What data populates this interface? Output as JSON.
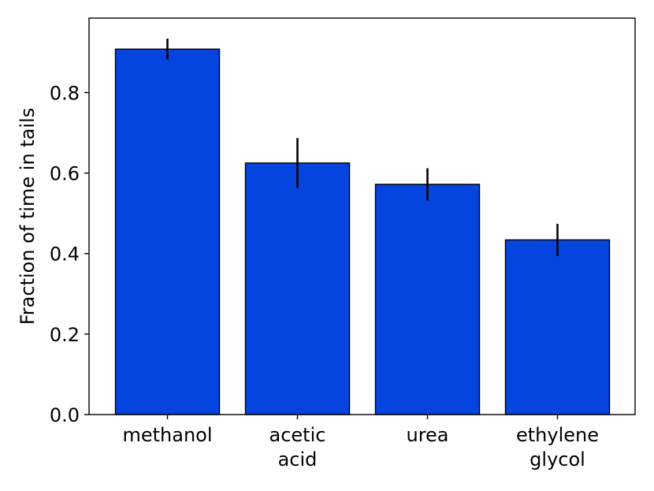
{
  "chart_data": {
    "type": "bar",
    "categories": [
      [
        "methanol"
      ],
      [
        "acetic",
        "acid"
      ],
      [
        "urea"
      ],
      [
        "ethylene",
        "glycol"
      ]
    ],
    "values": [
      0.908,
      0.625,
      0.572,
      0.434
    ],
    "error": [
      0.026,
      0.062,
      0.04,
      0.04
    ],
    "title": "",
    "xlabel": "",
    "ylabel": "Fraction of time in tails",
    "ylim": [
      0,
      0.985
    ],
    "yticks": [
      0.0,
      0.2,
      0.4,
      0.6,
      0.8
    ],
    "ytick_labels": [
      "0.0",
      "0.2",
      "0.4",
      "0.6",
      "0.8"
    ],
    "grid": false,
    "legend": "none",
    "bar_color": "#0644e0",
    "edge_color": "#000000",
    "error_color": "#000000"
  }
}
